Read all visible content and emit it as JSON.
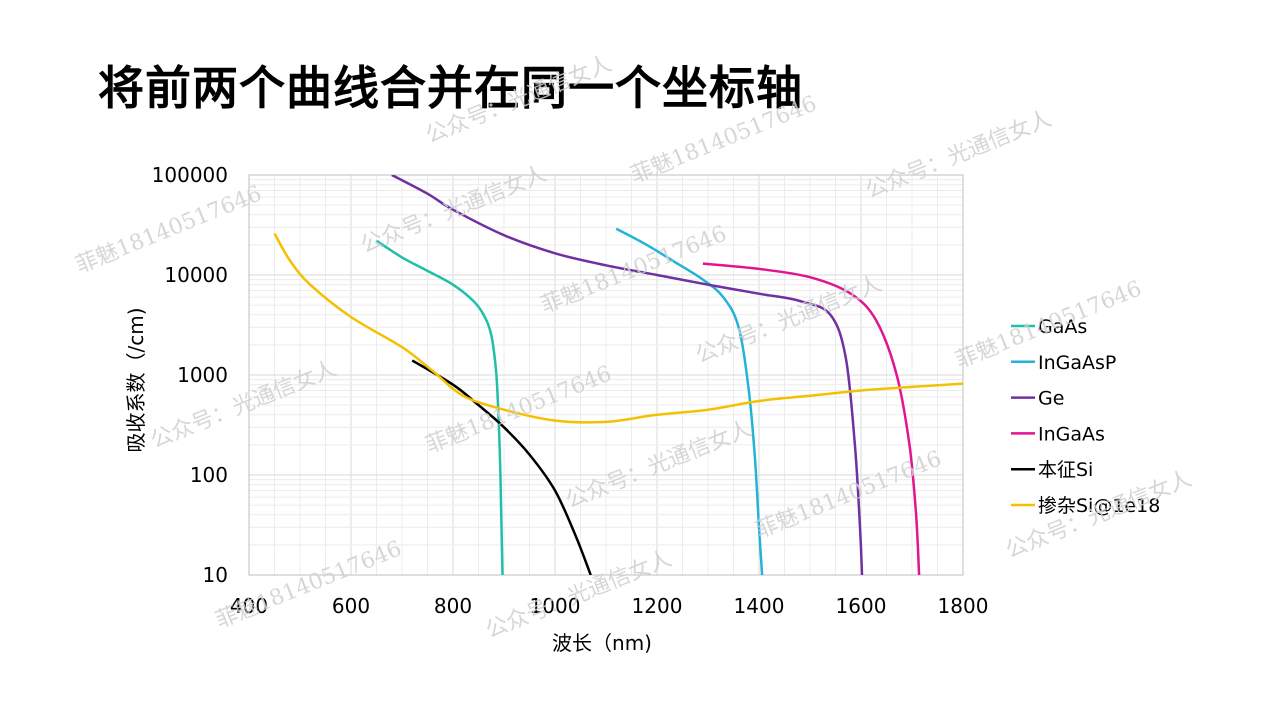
{
  "page": {
    "title": "将前两个曲线合并在同一个坐标轴"
  },
  "watermarks": [
    "公众号：光通信女人",
    "菲魅18140517646",
    "公众号：光通信女人",
    "菲魅18140517646",
    "公众号：光通信女人",
    "菲魅18140517646",
    "公众号：光通信女人",
    "菲魅18140517646",
    "公众号：光通信女人",
    "菲魅18140517646",
    "公众号：光通信女人",
    "菲魅18140517646",
    "公众号：光通信女人",
    "菲魅18140517646",
    "公众号：光通信女人"
  ],
  "chart_data": {
    "type": "line",
    "title": "",
    "xlabel": "波长（nm)",
    "ylabel": "吸收系数（/cm)",
    "xlim": [
      400,
      1800
    ],
    "ylim": [
      10,
      100000
    ],
    "yscale": "log",
    "x_ticks": [
      "400",
      "600",
      "800",
      "1000",
      "1200",
      "1400",
      "1600",
      "1800"
    ],
    "y_ticks": [
      "10",
      "100",
      "1000",
      "10000",
      "100000"
    ],
    "grid": true,
    "legend_position": "right",
    "series": [
      {
        "name": "GaAs",
        "color": "#1fc0a8",
        "points": [
          [
            650,
            22000
          ],
          [
            700,
            15000
          ],
          [
            750,
            11000
          ],
          [
            800,
            8000
          ],
          [
            840,
            5500
          ],
          [
            860,
            4000
          ],
          [
            875,
            2500
          ],
          [
            885,
            1000
          ],
          [
            890,
            300
          ],
          [
            893,
            100
          ],
          [
            897,
            10
          ]
        ]
      },
      {
        "name": "InGaAsP",
        "color": "#22b3d8",
        "points": [
          [
            1120,
            29000
          ],
          [
            1180,
            20000
          ],
          [
            1240,
            13000
          ],
          [
            1290,
            9000
          ],
          [
            1330,
            6000
          ],
          [
            1360,
            3000
          ],
          [
            1380,
            700
          ],
          [
            1392,
            150
          ],
          [
            1400,
            30
          ],
          [
            1406,
            10
          ]
        ]
      },
      {
        "name": "Ge",
        "color": "#7030a0",
        "points": [
          [
            680,
            100000
          ],
          [
            750,
            65000
          ],
          [
            800,
            45000
          ],
          [
            900,
            25000
          ],
          [
            1000,
            16500
          ],
          [
            1100,
            12500
          ],
          [
            1200,
            10000
          ],
          [
            1300,
            8000
          ],
          [
            1400,
            6500
          ],
          [
            1480,
            5500
          ],
          [
            1540,
            4000
          ],
          [
            1570,
            1500
          ],
          [
            1588,
            200
          ],
          [
            1598,
            30
          ],
          [
            1602,
            10
          ]
        ]
      },
      {
        "name": "InGaAs",
        "color": "#e0158f",
        "points": [
          [
            1290,
            13000
          ],
          [
            1400,
            11500
          ],
          [
            1500,
            9500
          ],
          [
            1580,
            6500
          ],
          [
            1630,
            3500
          ],
          [
            1670,
            1000
          ],
          [
            1695,
            200
          ],
          [
            1708,
            40
          ],
          [
            1714,
            10
          ]
        ]
      },
      {
        "name": "本征Si",
        "color": "#000000",
        "points": [
          [
            720,
            1400
          ],
          [
            800,
            800
          ],
          [
            850,
            500
          ],
          [
            900,
            300
          ],
          [
            950,
            160
          ],
          [
            1000,
            70
          ],
          [
            1040,
            25
          ],
          [
            1070,
            10
          ]
        ]
      },
      {
        "name": "掺杂Si@1e18",
        "color": "#f5c000",
        "points": [
          [
            450,
            26000
          ],
          [
            480,
            14000
          ],
          [
            520,
            8000
          ],
          [
            600,
            3800
          ],
          [
            700,
            1900
          ],
          [
            760,
            1100
          ],
          [
            820,
            620
          ],
          [
            900,
            450
          ],
          [
            1000,
            350
          ],
          [
            1100,
            340
          ],
          [
            1200,
            400
          ],
          [
            1300,
            450
          ],
          [
            1400,
            550
          ],
          [
            1500,
            620
          ],
          [
            1600,
            700
          ],
          [
            1700,
            760
          ],
          [
            1800,
            820
          ]
        ]
      }
    ]
  }
}
